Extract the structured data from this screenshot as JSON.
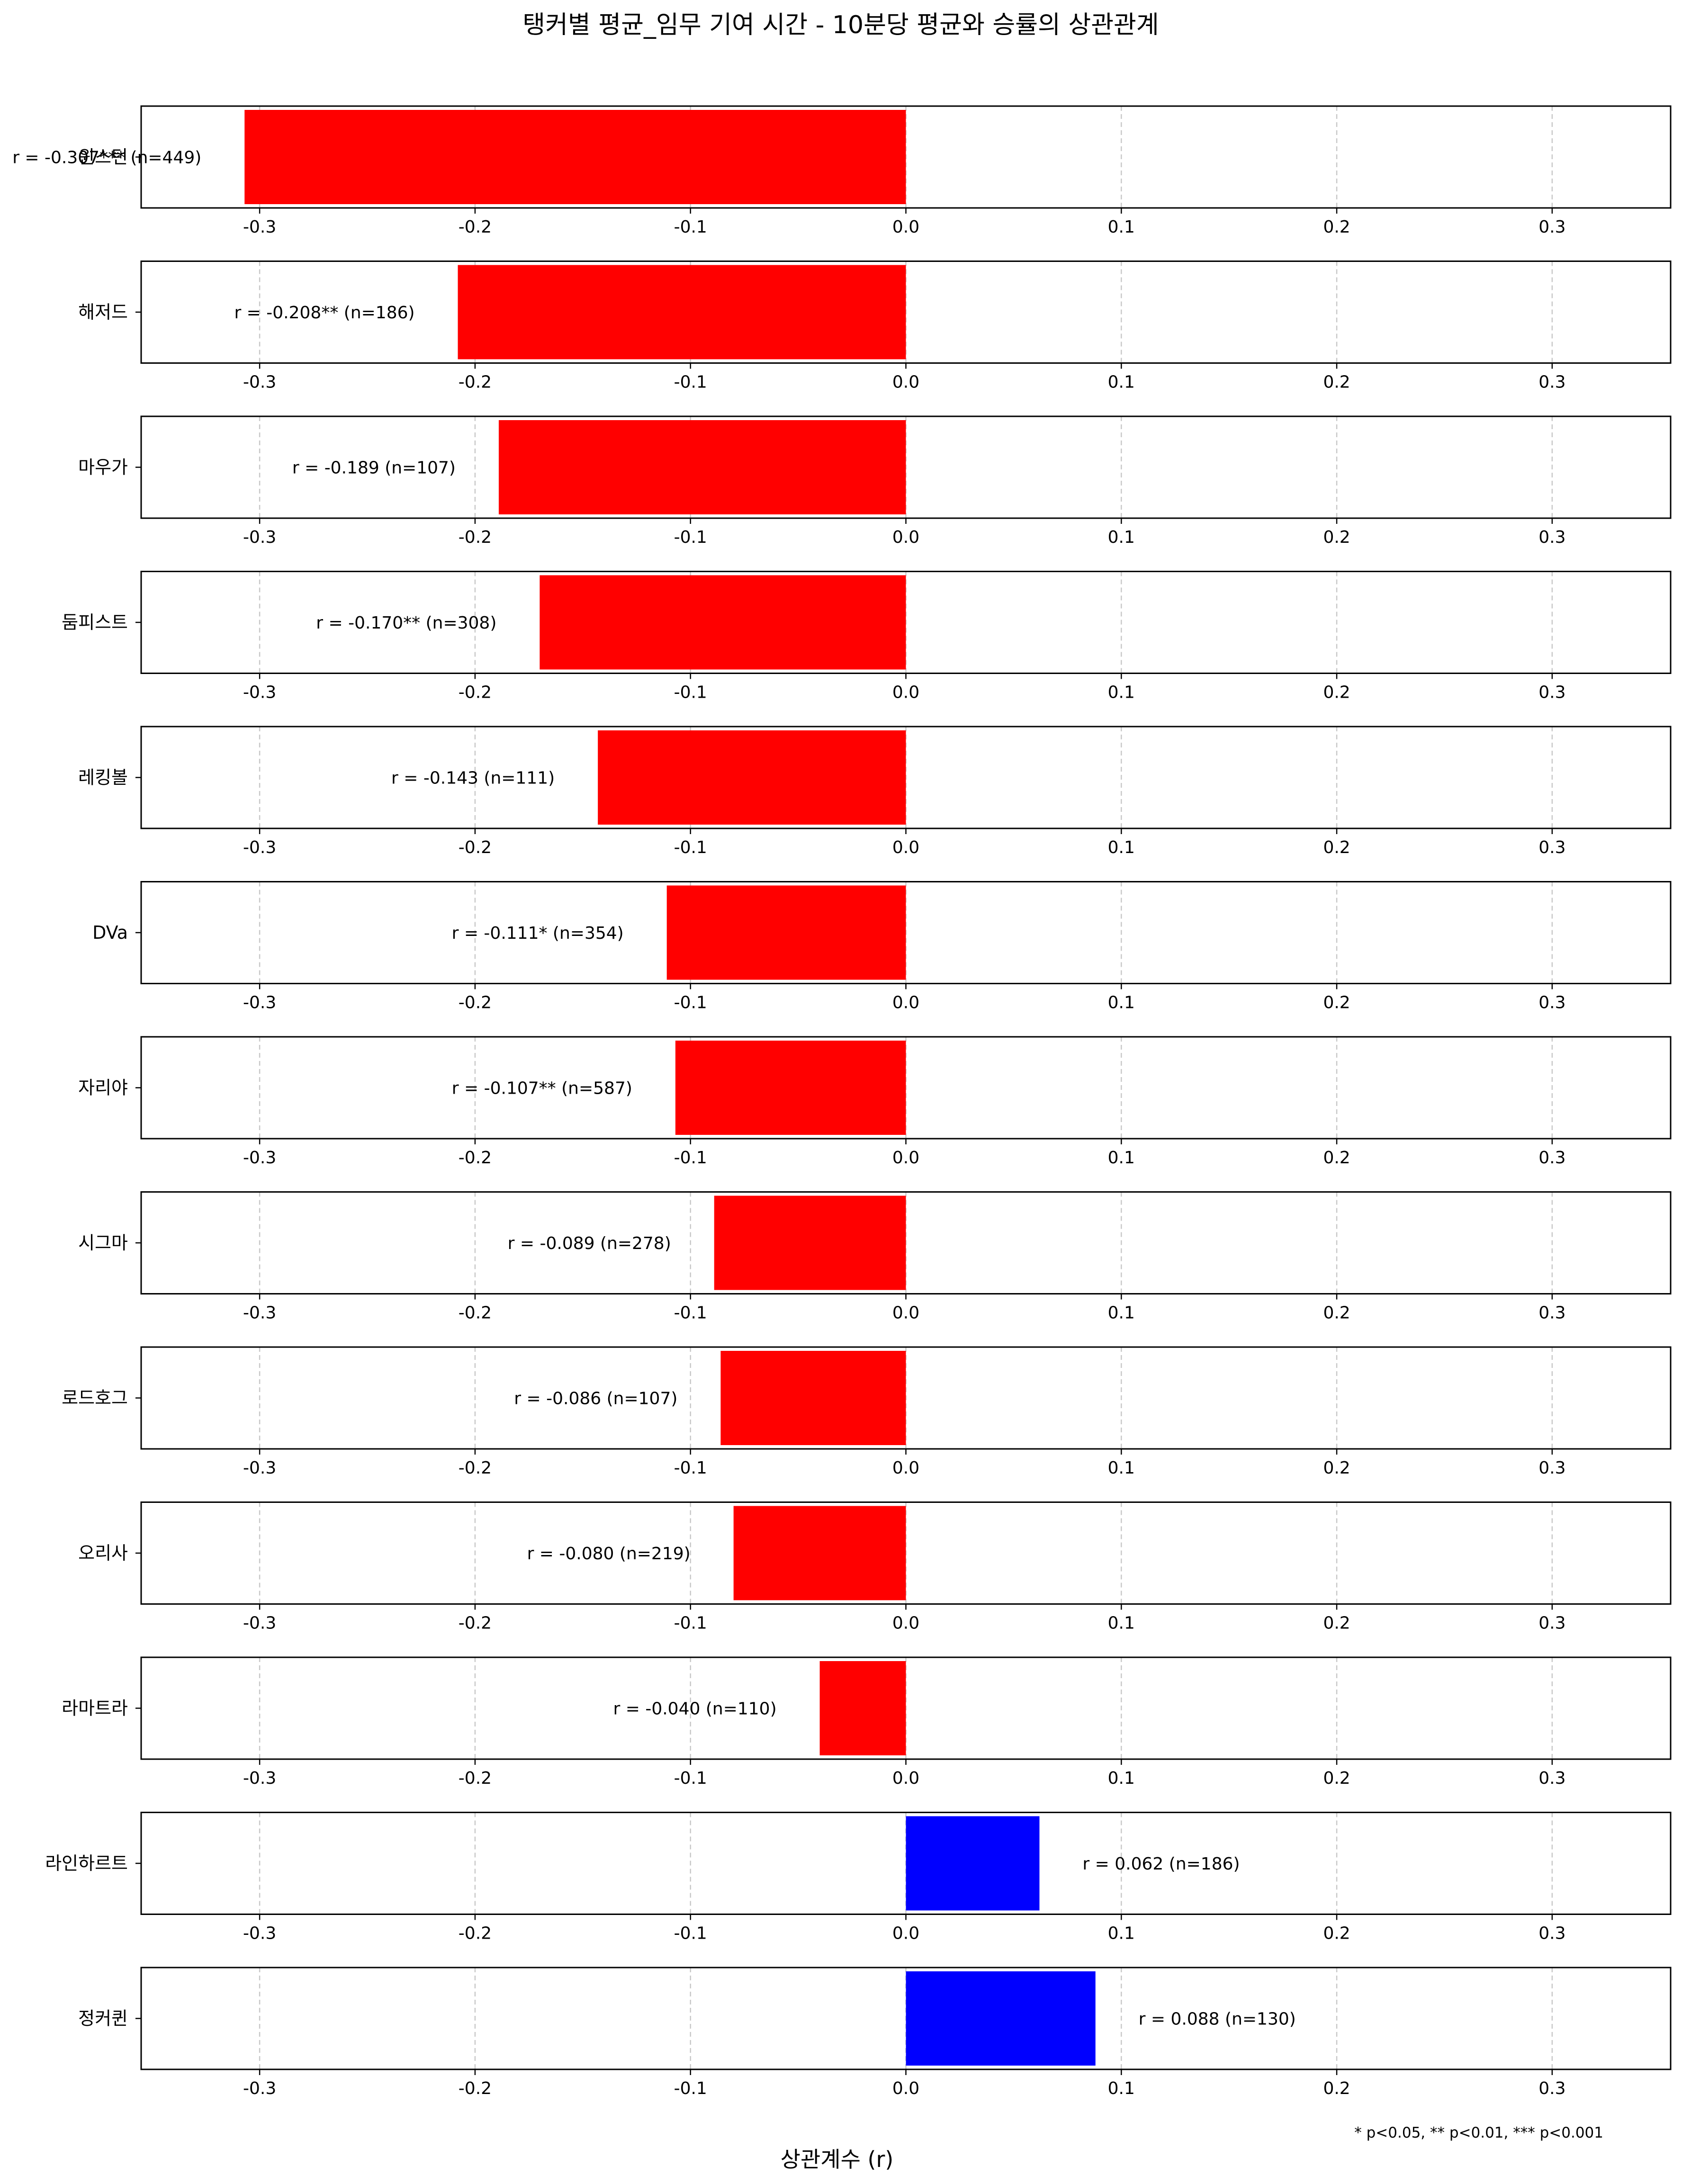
{
  "chart_data": {
    "type": "bar",
    "orientation": "horizontal",
    "title": "탱커별 평균_임무 기여 시간 - 10분당 평균와 승률의 상관관계",
    "xlabel": "상관계수 (r)",
    "ylabel": "",
    "xlim": [
      -0.355,
      0.355
    ],
    "xticks": [
      "-0.3",
      "-0.2",
      "-0.1",
      "0.0",
      "0.1",
      "0.2",
      "0.3"
    ],
    "grid": "vertical dashed",
    "footnote": "* p<0.05, ** p<0.01, *** p<0.001",
    "colors": {
      "negative": "#ff0000",
      "positive": "#0000ff",
      "grid": "#c8c8c8"
    },
    "categories": [
      "윈스턴",
      "해저드",
      "마우가",
      "둠피스트",
      "레킹볼",
      "DVa",
      "자리야",
      "시그마",
      "로드호그",
      "오리사",
      "라마트라",
      "라인하르트",
      "정커퀸"
    ],
    "values": [
      -0.307,
      -0.208,
      -0.189,
      -0.17,
      -0.143,
      -0.111,
      -0.107,
      -0.089,
      -0.086,
      -0.08,
      -0.04,
      0.062,
      0.088
    ],
    "n": [
      449,
      186,
      107,
      308,
      111,
      354,
      587,
      278,
      107,
      219,
      110,
      186,
      130
    ],
    "annotations": [
      "r = -0.307*** (n=449)",
      "r = -0.208** (n=186)",
      "r = -0.189 (n=107)",
      "r = -0.170** (n=308)",
      "r = -0.143 (n=111)",
      "r = -0.111* (n=354)",
      "r = -0.107** (n=587)",
      "r = -0.089 (n=278)",
      "r = -0.086 (n=107)",
      "r = -0.080 (n=219)",
      "r = -0.040 (n=110)",
      "r = 0.062 (n=186)",
      "r = 0.088 (n=130)"
    ]
  }
}
